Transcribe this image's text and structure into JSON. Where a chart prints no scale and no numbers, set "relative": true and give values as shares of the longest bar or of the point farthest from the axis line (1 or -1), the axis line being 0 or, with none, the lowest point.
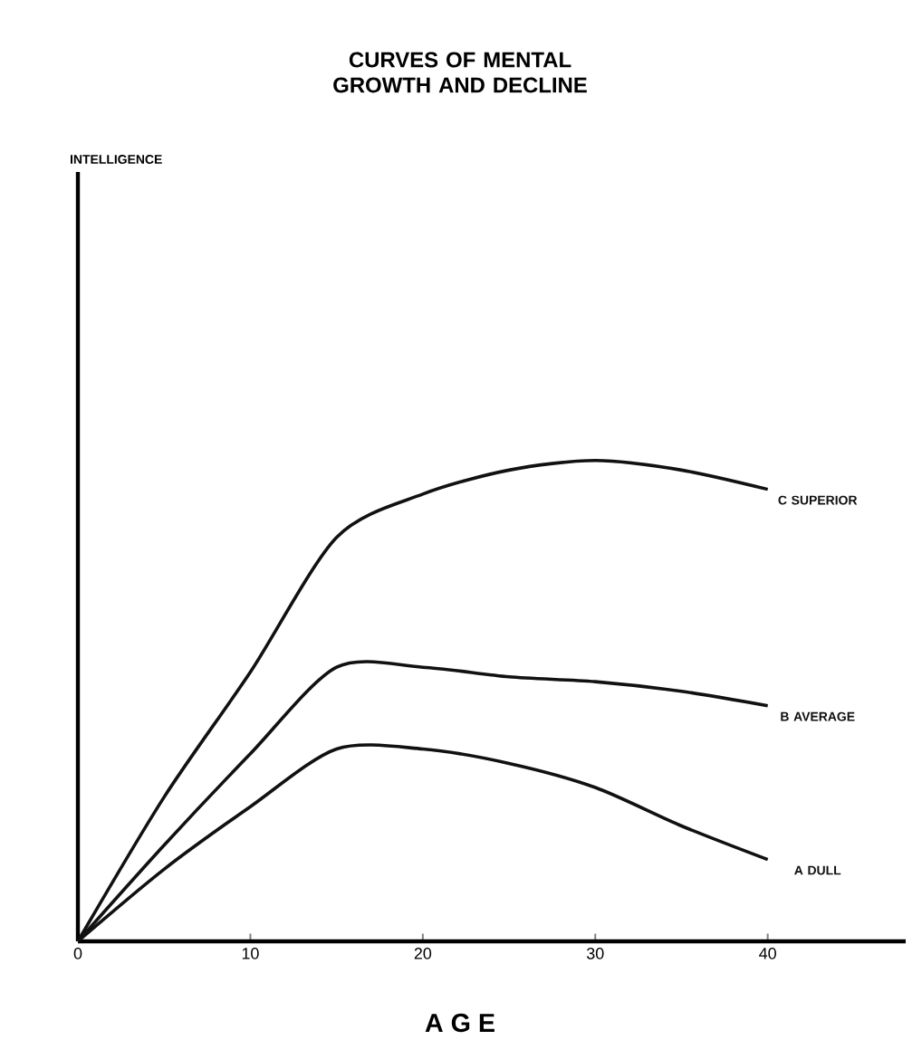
{
  "chart_data": {
    "type": "line",
    "title": "CURVES OF MENTAL GROWTH AND DECLINE",
    "xlabel": "A G E",
    "annotations": [
      "INTELLIGENCE"
    ],
    "relative": true,
    "xlim": [
      0,
      48
    ],
    "xticks": [
      0,
      10,
      20,
      30,
      40
    ],
    "marker": "none",
    "grid": false,
    "series": [
      {
        "name": "C SUPERIOR",
        "color": "#111111",
        "x": [
          0,
          5,
          10,
          15,
          20,
          25,
          30,
          35,
          40
        ],
        "values": [
          0,
          0.3,
          0.56,
          0.84,
          0.93,
          0.98,
          1.0,
          0.98,
          0.94
        ]
      },
      {
        "name": "B AVERAGE",
        "color": "#111111",
        "x": [
          0,
          5,
          10,
          15,
          20,
          25,
          30,
          35,
          40
        ],
        "values": [
          0,
          0.2,
          0.39,
          0.57,
          0.57,
          0.55,
          0.54,
          0.52,
          0.49
        ]
      },
      {
        "name": "A DULL",
        "color": "#111111",
        "x": [
          0,
          5,
          10,
          15,
          20,
          25,
          30,
          35,
          40
        ],
        "values": [
          0,
          0.15,
          0.28,
          0.4,
          0.4,
          0.37,
          0.32,
          0.24,
          0.17
        ]
      }
    ]
  }
}
